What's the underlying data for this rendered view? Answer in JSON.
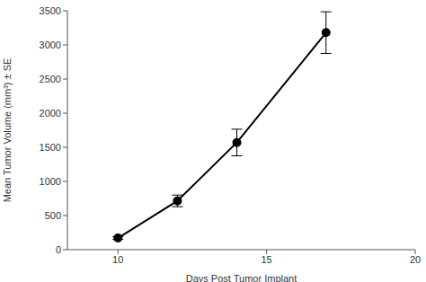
{
  "chart_data": {
    "type": "line",
    "x": [
      10,
      12,
      14,
      17
    ],
    "values": [
      170,
      715,
      1570,
      3180
    ],
    "errors": [
      20,
      85,
      195,
      305
    ],
    "color": "#000000",
    "marker": "circle",
    "xlabel": "Days Post Tumor Implant",
    "ylabel": "Mean Tumor Volume (mm³) ± SE",
    "xlim": [
      8.3,
      20
    ],
    "xticks": [
      10,
      15,
      20
    ],
    "ylim": [
      0,
      3500
    ],
    "yticks": [
      0,
      500,
      1000,
      1500,
      2000,
      2500,
      3000,
      3500
    ],
    "grid": false
  }
}
